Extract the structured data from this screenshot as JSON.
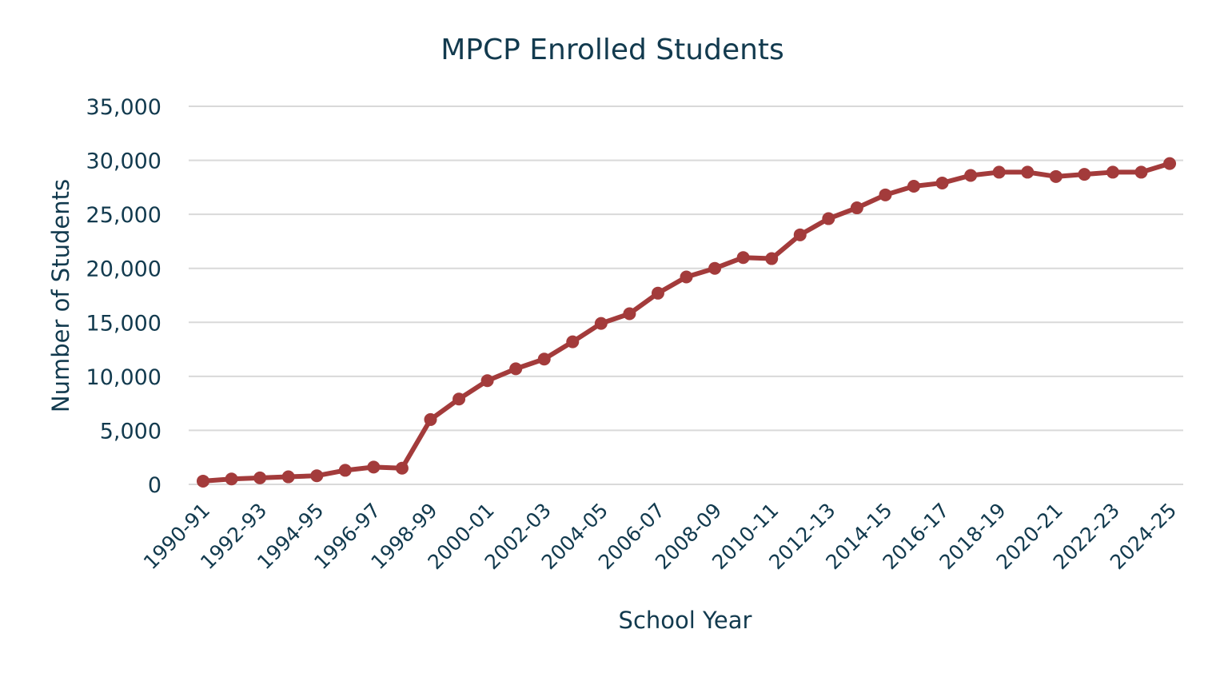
{
  "chart_data": {
    "type": "line",
    "title": "MPCP Enrolled Students",
    "xlabel": "School Year",
    "ylabel": "Number of Students",
    "ylim": [
      0,
      35000
    ],
    "yticks": [
      0,
      5000,
      10000,
      15000,
      20000,
      25000,
      30000,
      35000
    ],
    "ytick_labels": [
      "0",
      "5,000",
      "10,000",
      "15,000",
      "20,000",
      "25,000",
      "30,000",
      "35,000"
    ],
    "grid": "horizontal",
    "categories": [
      "1990-91",
      "1991-92",
      "1992-93",
      "1993-94",
      "1994-95",
      "1995-96",
      "1996-97",
      "1997-98",
      "1998-99",
      "1999-00",
      "2000-01",
      "2001-02",
      "2002-03",
      "2003-04",
      "2004-05",
      "2005-06",
      "2006-07",
      "2007-08",
      "2008-09",
      "2009-10",
      "2010-11",
      "2011-12",
      "2012-13",
      "2013-14",
      "2014-15",
      "2015-16",
      "2016-17",
      "2017-18",
      "2018-19",
      "2019-20",
      "2020-21",
      "2021-22",
      "2022-23",
      "2023-24",
      "2024-25"
    ],
    "tick_label_every": 2,
    "series": [
      {
        "color": "#a33b3b",
        "values": [
          300,
          500,
          600,
          700,
          800,
          1300,
          1600,
          1500,
          6000,
          7900,
          9600,
          10700,
          11600,
          13200,
          14900,
          15800,
          17700,
          19200,
          20000,
          21000,
          20900,
          23100,
          24600,
          25600,
          26800,
          27600,
          27900,
          28600,
          28900,
          28900,
          28500,
          28700,
          28900,
          28900,
          29700
        ]
      }
    ],
    "colors": {
      "text": "#123a4e",
      "grid": "#d9d9d9",
      "line": "#a33b3b"
    }
  }
}
